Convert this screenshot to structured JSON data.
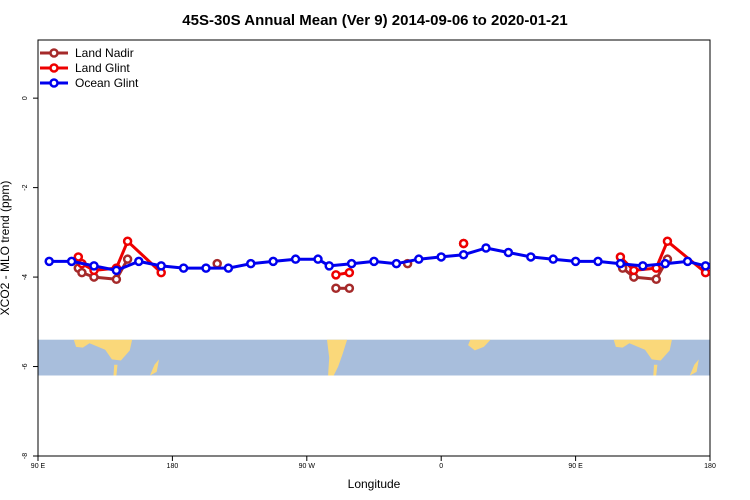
{
  "chart_data": {
    "type": "line",
    "title": "45S-30S Annual Mean (Ver 9)   2014-09-06 to 2020-01-21",
    "xlabel": "Longitude",
    "ylabel": "XCO2 - MLO trend (ppm)",
    "xlim": [
      90,
      390
    ],
    "ylim": [
      -8.0,
      1.3
    ],
    "x_ticks": [
      90,
      150,
      210,
      270,
      330,
      390
    ],
    "x_tick_labels": [
      "90 E",
      "180",
      "90 W",
      "0",
      "90 E",
      "180"
    ],
    "y_ticks": [
      0,
      -2,
      -4,
      -6,
      -8
    ],
    "y_tick_labels": [
      "0",
      "-2",
      "-4",
      "-6",
      "-8"
    ],
    "grid": false,
    "legend_position": "top-left",
    "map_band": {
      "y_range": [
        -6.2,
        -5.4
      ],
      "ocean_color": "#a8bedc",
      "land_color": "#fad87a"
    },
    "series": [
      {
        "name": "Land Nadir",
        "color": "#a52a2a",
        "segments": [
          [
            [
              108,
              -3.8
            ],
            [
              109.6,
              -3.9
            ],
            [
              115,
              -4.0
            ],
            [
              125,
              -4.05
            ],
            [
              130,
              -3.6
            ]
          ],
          [
            [
              223,
              -4.25
            ],
            [
              229,
              -4.25
            ]
          ],
          [
            [
              280,
              -3.25
            ]
          ],
          [
            [
              170,
              -3.7
            ]
          ],
          [
            [
              255,
              -3.7
            ]
          ],
          [
            [
              351,
              -3.8
            ],
            [
              356,
              -4.0
            ],
            [
              366,
              -4.05
            ],
            [
              371,
              -3.6
            ]
          ]
        ]
      },
      {
        "name": "Land Glint",
        "color": "#ee0000",
        "segments": [
          [
            [
              108,
              -3.55
            ],
            [
              109.6,
              -3.7
            ],
            [
              115,
              -3.85
            ],
            [
              125,
              -3.8
            ],
            [
              130,
              -3.2
            ],
            [
              145,
              -3.9
            ]
          ],
          [
            [
              223,
              -3.95
            ],
            [
              229,
              -3.9
            ]
          ],
          [
            [
              280,
              -3.25
            ]
          ],
          [
            [
              350,
              -3.55
            ],
            [
              356,
              -3.85
            ],
            [
              366,
              -3.8
            ],
            [
              371,
              -3.2
            ],
            [
              388,
              -3.9
            ]
          ]
        ]
      },
      {
        "name": "Ocean Glint",
        "color": "#0000ee",
        "segments": [
          [
            [
              95,
              -3.65
            ],
            [
              105,
              -3.65
            ],
            [
              115,
              -3.75
            ],
            [
              125,
              -3.85
            ],
            [
              135,
              -3.65
            ],
            [
              145,
              -3.75
            ],
            [
              155,
              -3.8
            ],
            [
              165,
              -3.8
            ],
            [
              175,
              -3.8
            ],
            [
              185,
              -3.7
            ],
            [
              195,
              -3.65
            ],
            [
              205,
              -3.6
            ],
            [
              215,
              -3.6
            ],
            [
              220,
              -3.75
            ],
            [
              230,
              -3.7
            ],
            [
              240,
              -3.65
            ],
            [
              250,
              -3.7
            ],
            [
              260,
              -3.6
            ],
            [
              270,
              -3.55
            ],
            [
              280,
              -3.5
            ],
            [
              290,
              -3.35
            ],
            [
              300,
              -3.45
            ],
            [
              310,
              -3.55
            ],
            [
              320,
              -3.6
            ],
            [
              330,
              -3.65
            ],
            [
              340,
              -3.65
            ],
            [
              350,
              -3.7
            ],
            [
              360,
              -3.75
            ],
            [
              370,
              -3.7
            ],
            [
              380,
              -3.65
            ],
            [
              388,
              -3.75
            ]
          ]
        ]
      }
    ]
  }
}
